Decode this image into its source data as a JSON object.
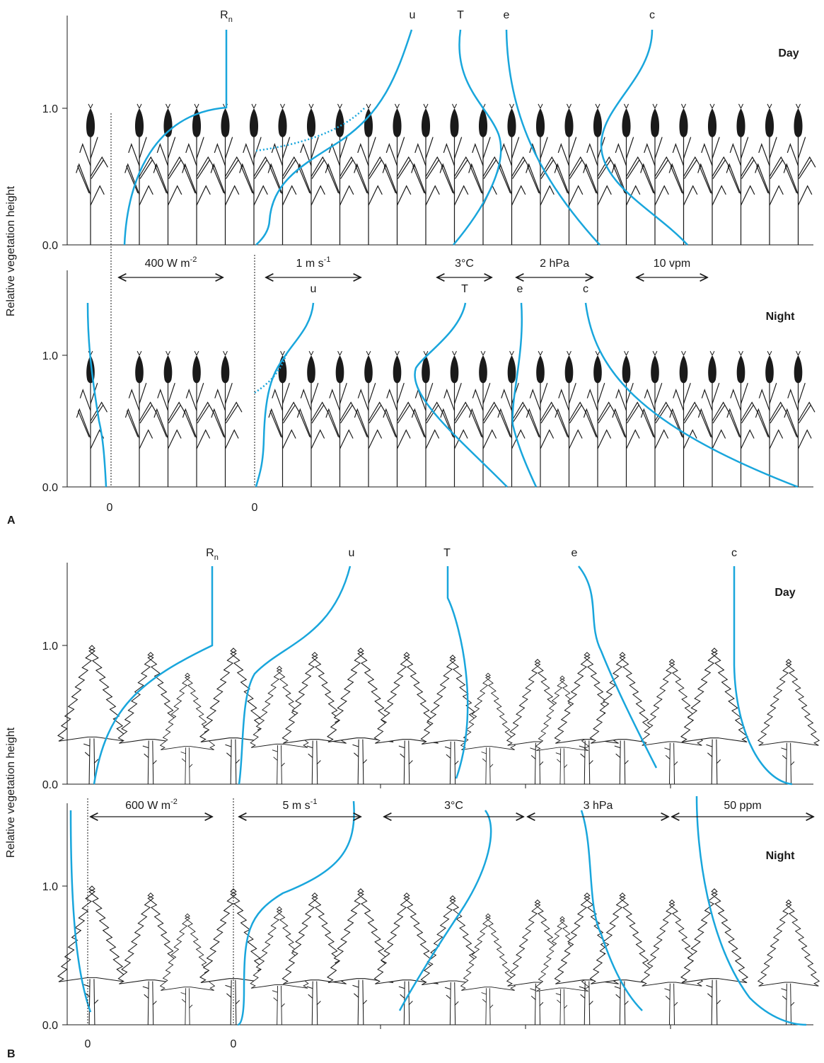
{
  "panels": [
    {
      "label": "A",
      "y_axis_label": "Relative vegetation height",
      "day": {
        "title": "Day",
        "ticks": [
          "1.0",
          "0.0"
        ],
        "curve_labels": [
          {
            "text": "R",
            "sub": "n"
          },
          {
            "text": "u"
          },
          {
            "text": "T"
          },
          {
            "text": "e"
          },
          {
            "text": "c"
          }
        ]
      },
      "night": {
        "title": "Night",
        "ticks": [
          "1.0",
          "0.0"
        ],
        "curve_labels": [
          {
            "text": "u"
          },
          {
            "text": "T"
          },
          {
            "text": "e"
          },
          {
            "text": "c"
          }
        ]
      },
      "scale_bars": [
        {
          "text": "400 W m",
          "sup": "-2"
        },
        {
          "text": "1 m s",
          "sup": "-1"
        },
        {
          "text": "3°C"
        },
        {
          "text": "2 hPa"
        },
        {
          "text": "10 vpm"
        }
      ],
      "zero_labels": [
        "0",
        "0"
      ]
    },
    {
      "label": "B",
      "y_axis_label": "Relative vegetation height",
      "day": {
        "title": "Day",
        "ticks": [
          "1.0",
          "0.0"
        ],
        "curve_labels": [
          {
            "text": "R",
            "sub": "n"
          },
          {
            "text": "u"
          },
          {
            "text": "T"
          },
          {
            "text": "e"
          },
          {
            "text": "c"
          }
        ]
      },
      "night": {
        "title": "Night",
        "ticks": [
          "1.0",
          "0.0"
        ],
        "curve_labels": []
      },
      "scale_bars": [
        {
          "text": "600 W m",
          "sup": "-2"
        },
        {
          "text": "5 m s",
          "sup": "-1"
        },
        {
          "text": "3°C"
        },
        {
          "text": "3 hPa"
        },
        {
          "text": "50 ppm"
        }
      ],
      "zero_labels": [
        "0",
        "0"
      ]
    }
  ]
}
